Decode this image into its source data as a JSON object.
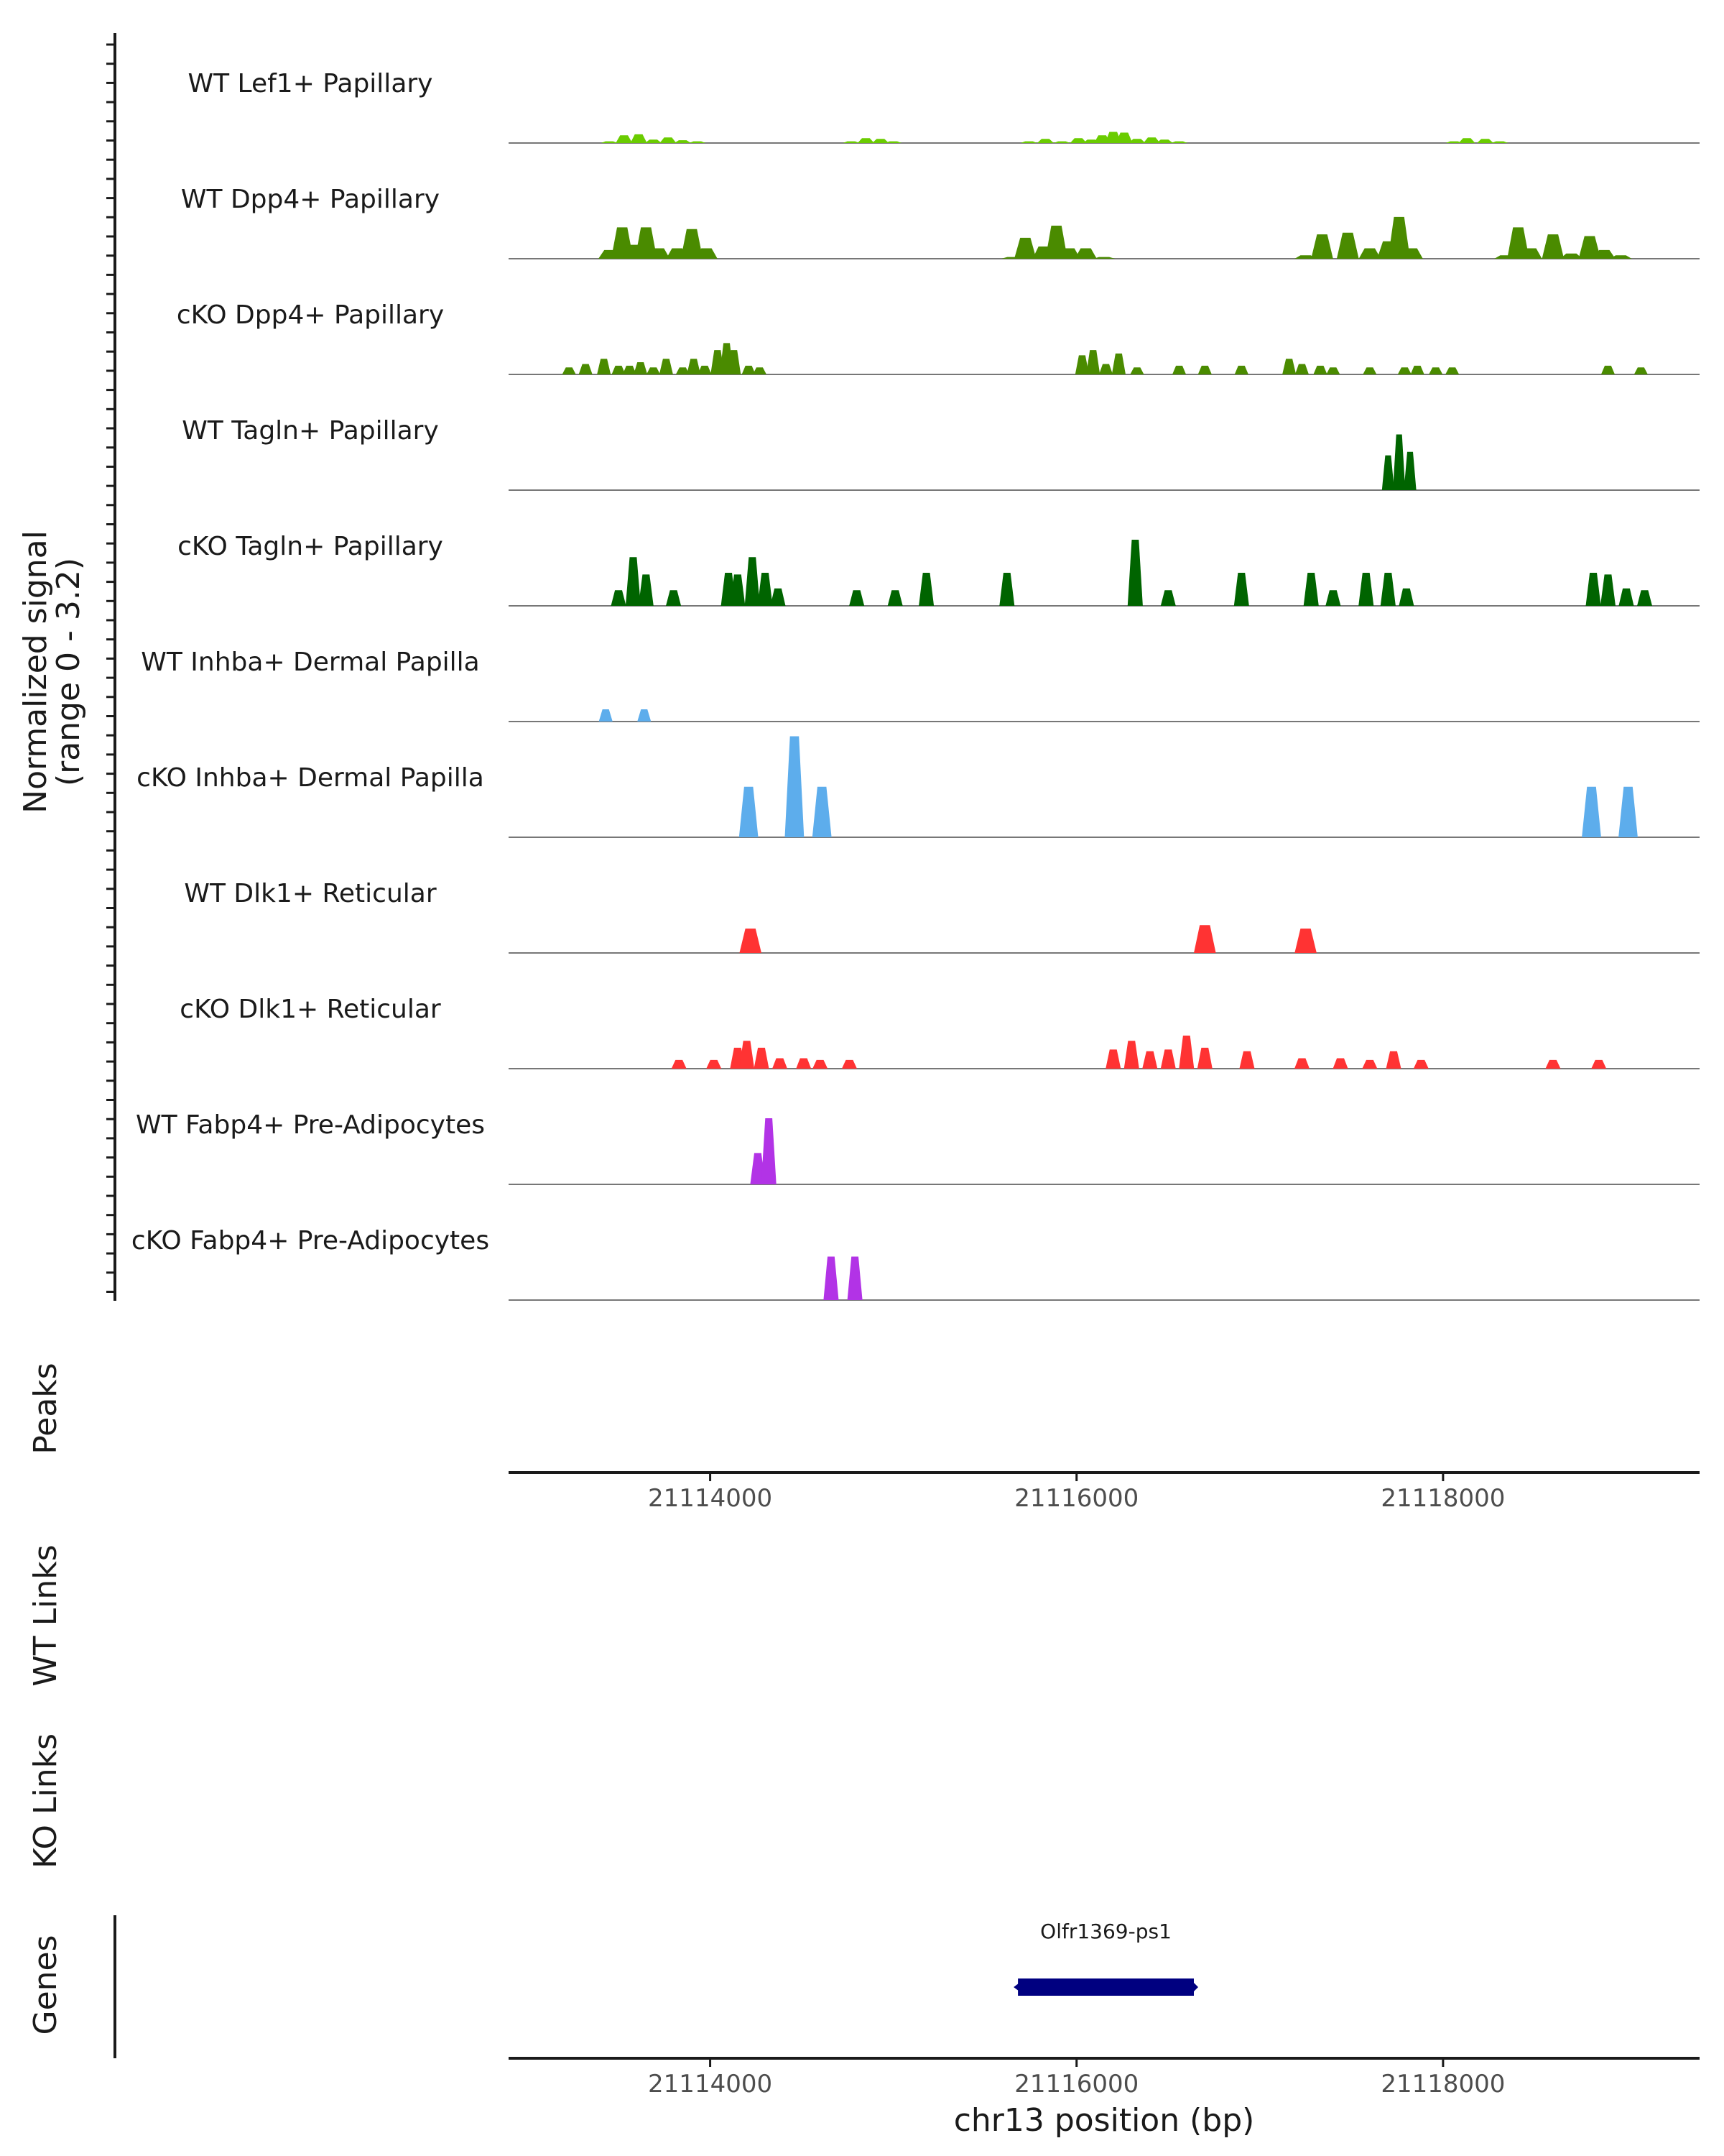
{
  "chart_data": {
    "type": "area",
    "title": "",
    "chromosome": "chr13",
    "xlim": [
      21112900,
      21119400
    ],
    "xticks": [
      21114000,
      21116000,
      21118000
    ],
    "xtick_labels": [
      "21114000",
      "21116000",
      "21118000"
    ],
    "xlabel": "chr13 position (bp)",
    "ylabel_line1": "Normalized signal",
    "ylabel_line2": "(range 0 - 3.2)",
    "ylim": [
      0,
      3.2
    ],
    "panel_labels": {
      "peaks": "Peaks",
      "wt_links": "WT Links",
      "ko_links": "KO Links",
      "genes": "Genes"
    },
    "series": [
      {
        "name": "WT Lef1+ Papillary",
        "color": "#6ACC00",
        "x": [
          21113450,
          21113530,
          21113610,
          21113690,
          21113770,
          21113850,
          21113930,
          21114770,
          21114850,
          21114930,
          21115000,
          21115740,
          21115830,
          21115920,
          21116010,
          21116080,
          21116140,
          21116200,
          21116260,
          21116330,
          21116410,
          21116480,
          21116560,
          21118060,
          21118130,
          21118230,
          21118310
        ],
        "y": [
          0.05,
          0.22,
          0.25,
          0.1,
          0.16,
          0.08,
          0.05,
          0.05,
          0.14,
          0.12,
          0.05,
          0.05,
          0.12,
          0.05,
          0.14,
          0.1,
          0.22,
          0.32,
          0.3,
          0.12,
          0.16,
          0.1,
          0.05,
          0.05,
          0.14,
          0.12,
          0.05
        ]
      },
      {
        "name": "WT Dpp4+ Papillary",
        "color": "#4A8B00",
        "x": [
          21113450,
          21113520,
          21113580,
          21113650,
          21113720,
          21113820,
          21113900,
          21113980,
          21115650,
          21115720,
          21115820,
          21115890,
          21115960,
          21116050,
          21116150,
          21117250,
          21117340,
          21117480,
          21117600,
          21117700,
          21117760,
          21117830,
          21118340,
          21118410,
          21118480,
          21118600,
          21118700,
          21118800,
          21118880,
          21118970
        ],
        "y": [
          0.25,
          0.9,
          0.4,
          0.9,
          0.3,
          0.3,
          0.85,
          0.3,
          0.05,
          0.6,
          0.35,
          0.95,
          0.3,
          0.3,
          0.05,
          0.1,
          0.7,
          0.75,
          0.3,
          0.5,
          1.2,
          0.3,
          0.1,
          0.9,
          0.3,
          0.7,
          0.15,
          0.65,
          0.25,
          0.1
        ],
        "x_spread": 80
      },
      {
        "name": "cKO Dpp4+ Papillary",
        "color": "#4A8B00",
        "x": [
          21113230,
          21113320,
          21113420,
          21113500,
          21113560,
          21113620,
          21113690,
          21113760,
          21113850,
          21113910,
          21113970,
          21114040,
          21114090,
          21114130,
          21114210,
          21114270,
          21116030,
          21116090,
          21116160,
          21116230,
          21116330,
          21116560,
          21116700,
          21116900,
          21117160,
          21117230,
          21117330,
          21117400,
          21117600,
          21117790,
          21117860,
          21117960,
          21118050,
          21118900,
          21119080
        ],
        "y": [
          0.2,
          0.3,
          0.45,
          0.25,
          0.25,
          0.35,
          0.2,
          0.45,
          0.2,
          0.45,
          0.25,
          0.7,
          0.9,
          0.7,
          0.25,
          0.2,
          0.55,
          0.7,
          0.3,
          0.6,
          0.2,
          0.25,
          0.25,
          0.25,
          0.45,
          0.3,
          0.25,
          0.2,
          0.2,
          0.2,
          0.25,
          0.2,
          0.2,
          0.25,
          0.2
        ],
        "x_spread": 50
      },
      {
        "name": "WT Tagln+ Papillary",
        "color": "#006400",
        "x": [
          21117700,
          21117760,
          21117820
        ],
        "y": [
          1.0,
          1.6,
          1.1
        ],
        "x_spread": 45
      },
      {
        "name": "cKO Tagln+ Papillary",
        "color": "#006400",
        "x": [
          21113500,
          21113580,
          21113650,
          21113800,
          21114100,
          21114150,
          21114230,
          21114300,
          21114370,
          21114800,
          21115010,
          21115180,
          21115620,
          21116320,
          21116500,
          21116900,
          21117280,
          21117400,
          21117580,
          21117700,
          21117800,
          21118820,
          21118900,
          21119000,
          21119100
        ],
        "y": [
          0.45,
          1.4,
          0.9,
          0.45,
          0.95,
          0.9,
          1.4,
          0.95,
          0.5,
          0.45,
          0.45,
          0.95,
          0.95,
          1.9,
          0.45,
          0.95,
          0.95,
          0.45,
          0.95,
          0.95,
          0.5,
          0.95,
          0.9,
          0.5,
          0.45
        ],
        "x_spread": 55
      },
      {
        "name": "WT Inhba+ Dermal Papilla",
        "color": "#5DADEC",
        "x": [
          21113430,
          21113640
        ],
        "y": [
          0.35,
          0.35
        ],
        "x_spread": 50
      },
      {
        "name": "cKO Inhba+ Dermal Papilla",
        "color": "#5DADEC",
        "x": [
          21114210,
          21114460,
          21114610,
          21118810,
          21119010
        ],
        "y": [
          1.45,
          2.9,
          1.45,
          1.45,
          1.45
        ],
        "x_spread": 70
      },
      {
        "name": "WT Dlk1+ Reticular",
        "color": "#FF3333",
        "x": [
          21114220,
          21116700,
          21117250
        ],
        "y": [
          0.7,
          0.8,
          0.7
        ],
        "x_spread": 80
      },
      {
        "name": "cKO Dlk1+ Reticular",
        "color": "#FF3333",
        "x": [
          21113830,
          21114020,
          21114150,
          21114200,
          21114280,
          21114380,
          21114510,
          21114600,
          21114760,
          21116200,
          21116300,
          21116400,
          21116500,
          21116600,
          21116700,
          21116930,
          21117230,
          21117440,
          21117600,
          21117730,
          21117880,
          21118600,
          21118850
        ],
        "y": [
          0.25,
          0.25,
          0.6,
          0.8,
          0.6,
          0.3,
          0.3,
          0.25,
          0.25,
          0.55,
          0.8,
          0.5,
          0.55,
          0.95,
          0.6,
          0.5,
          0.3,
          0.3,
          0.25,
          0.5,
          0.25,
          0.25,
          0.25
        ],
        "x_spread": 55
      },
      {
        "name": "WT Fabp4+ Pre-Adipocytes",
        "color": "#B233E6",
        "x": [
          21114260,
          21114320
        ],
        "y": [
          0.9,
          1.9
        ],
        "x_spread": 55
      },
      {
        "name": "cKO Fabp4+ Pre-Adipocytes",
        "color": "#B233E6",
        "x": [
          21114660,
          21114790
        ],
        "y": [
          1.25,
          1.25
        ],
        "x_spread": 55
      }
    ],
    "genes": [
      {
        "name": "Olfr1369-ps1",
        "start": 21115680,
        "end": 21116640,
        "strand": "-",
        "color": "#000080"
      }
    ]
  }
}
